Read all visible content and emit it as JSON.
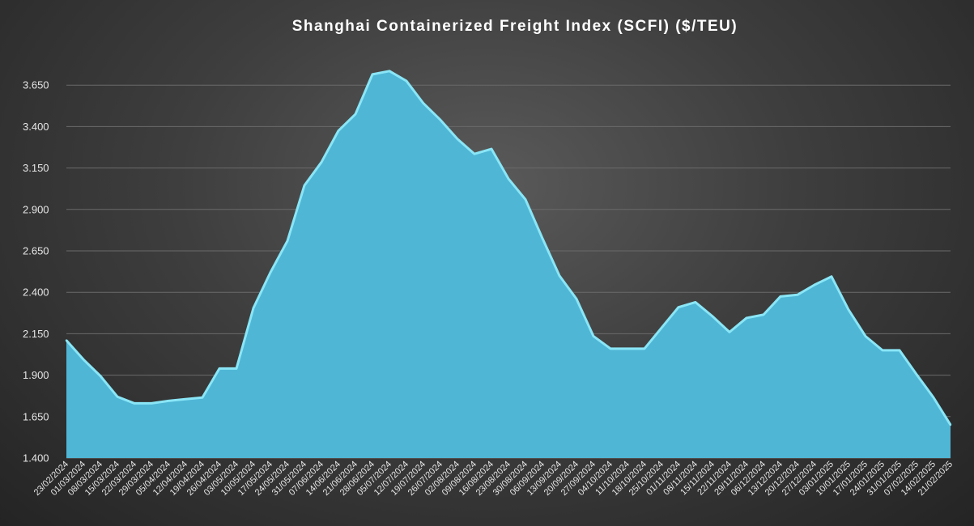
{
  "chart_data": {
    "type": "area",
    "title": "Shanghai  Containerized  Freight  Index  (SCFI) ($/TEU)",
    "xlabel": "",
    "ylabel": "",
    "ylim": [
      1400,
      3900
    ],
    "yticks": [
      1400,
      1650,
      1900,
      2150,
      2400,
      2650,
      2900,
      3150,
      3400,
      3650
    ],
    "ytick_labels": [
      "1.400",
      "1.650",
      "1.900",
      "2.150",
      "2.400",
      "2.650",
      "2.900",
      "3.150",
      "3.400",
      "3.650"
    ],
    "grid": true,
    "legend": "none",
    "colors": {
      "area": "#4fb6d6",
      "line": "#8ae6f6"
    },
    "categories": [
      "23/02/2024",
      "01/03/2024",
      "08/03/2024",
      "15/03/2024",
      "22/03/2024",
      "29/03/2024",
      "05/04/2024",
      "12/04/2024",
      "19/04/2024",
      "26/04/2024",
      "03/05/2024",
      "10/05/2024",
      "17/05/2024",
      "24/05/2024",
      "31/05/2024",
      "07/06/2024",
      "14/06/2024",
      "21/06/2024",
      "28/06/2024",
      "05/07/2024",
      "12/07/2024",
      "19/07/2024",
      "26/07/2024",
      "02/08/2024",
      "09/08/2024",
      "16/08/2024",
      "23/08/2024",
      "30/08/2024",
      "06/09/2024",
      "13/09/2024",
      "20/09/2024",
      "27/09/2024",
      "04/10/2024",
      "11/10/2024",
      "18/10/2024",
      "25/10/2024",
      "01/11/2024",
      "08/11/2024",
      "15/11/2024",
      "22/11/2024",
      "29/11/2024",
      "06/12/2024",
      "13/12/2024",
      "20/12/2024",
      "27/12/2024",
      "03/01/2025",
      "10/01/2025",
      "17/01/2025",
      "24/01/2025",
      "31/01/2025",
      "07/02/2025",
      "14/02/2025",
      "21/02/2025"
    ],
    "values": [
      2110,
      1995,
      1895,
      1770,
      1730,
      1730,
      1745,
      1755,
      1765,
      1940,
      1940,
      2305,
      2520,
      2710,
      3045,
      3185,
      3375,
      3475,
      3715,
      3735,
      3675,
      3540,
      3440,
      3325,
      3235,
      3265,
      3085,
      2960,
      2725,
      2500,
      2360,
      2135,
      2060,
      2060,
      2060,
      2185,
      2310,
      2340,
      2255,
      2160,
      2245,
      2265,
      2375,
      2385,
      2445,
      2495,
      2295,
      2135,
      2050,
      2050,
      1905,
      1765,
      1600
    ]
  }
}
